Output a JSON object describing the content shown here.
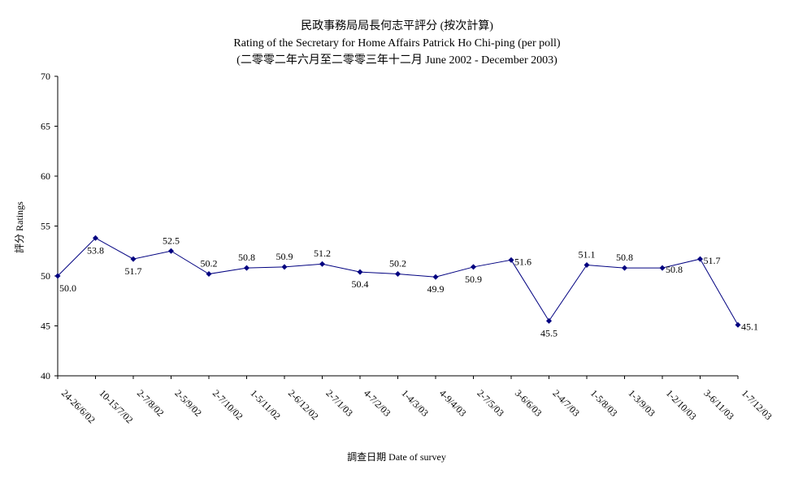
{
  "chart_data": {
    "type": "line",
    "title": "民政事務局局長何志平評分 (按次計算)",
    "subtitle": "Rating of the Secretary for Home Affairs Patrick Ho Chi-ping (per poll)",
    "subtitle2": "(二零零二年六月至二零零三年十二月 June 2002 - December 2003)",
    "xlabel": "調查日期 Date of survey",
    "ylabel": "評分 Ratings",
    "ylim": [
      40,
      70
    ],
    "yticks": [
      40,
      45,
      50,
      55,
      60,
      65,
      70
    ],
    "grid": false,
    "categories": [
      "24-26/6/02",
      "10-15/7/02",
      "2-7/8/02",
      "2-5/9/02",
      "2-7/10/02",
      "1-5/11/02",
      "2-6/12/02",
      "2-7/1/03",
      "4-7/2/03",
      "1-4/3/03",
      "4-9/4/03",
      "2-7/5/03",
      "3-6/6/03",
      "2-4/7/03",
      "1-5/8/03",
      "1-3/9/03",
      "1-2/10/03",
      "3-6/11/03",
      "1-7/12/03"
    ],
    "values": [
      50.0,
      53.8,
      51.7,
      52.5,
      50.2,
      50.8,
      50.9,
      51.2,
      50.4,
      50.2,
      49.9,
      50.9,
      51.6,
      45.5,
      51.1,
      50.8,
      50.8,
      51.7,
      45.1
    ],
    "value_labels": [
      "50.0",
      "53.8",
      "51.7",
      "52.5",
      "50.2",
      "50.8",
      "50.9",
      "51.2",
      "50.4",
      "50.2",
      "49.9",
      "50.9",
      "51.6",
      "45.5",
      "51.1",
      "50.8",
      "50.8",
      "51.7",
      "45.1"
    ],
    "label_position": [
      "below",
      "below",
      "below",
      "above",
      "above",
      "above",
      "above",
      "above",
      "below",
      "above",
      "below",
      "below",
      "right",
      "below",
      "above",
      "above",
      "right",
      "right",
      "right"
    ],
    "series_color": "#000080"
  }
}
